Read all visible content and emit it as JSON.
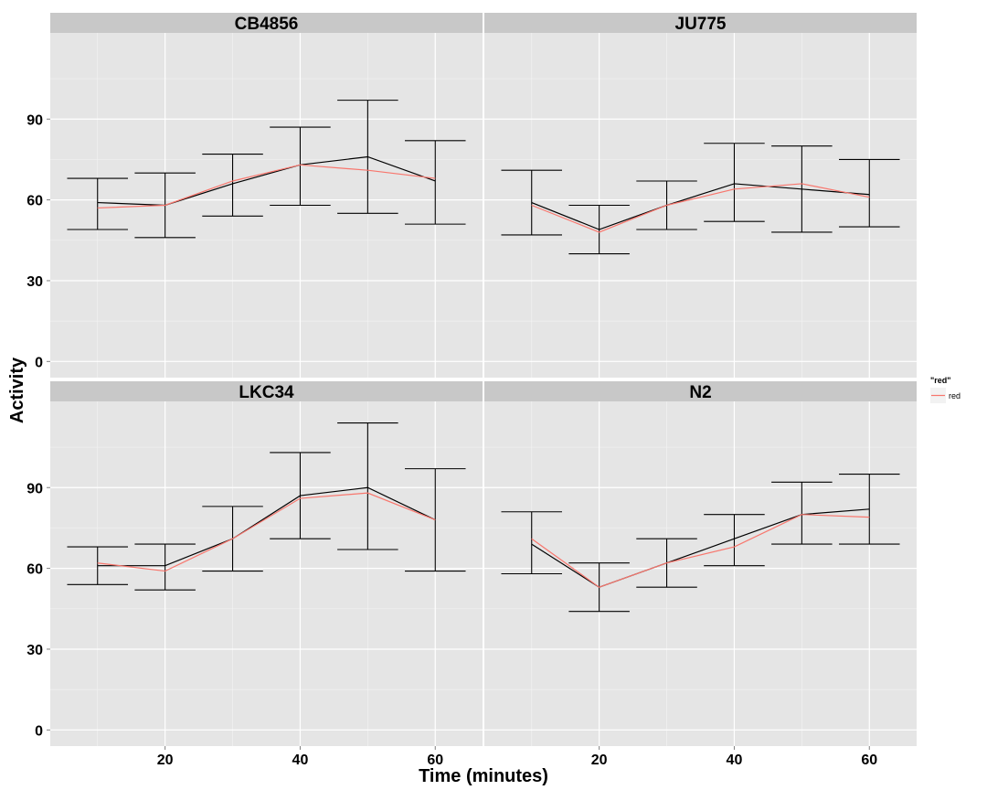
{
  "chart_data": {
    "type": "line",
    "xlabel": "Time (minutes)",
    "ylabel": "Activity",
    "x_ticks": [
      20,
      40,
      60
    ],
    "y_ticks": [
      0,
      30,
      60,
      90
    ],
    "xlim": [
      3,
      67
    ],
    "ylim": [
      -6,
      122
    ],
    "grid": true,
    "legend": {
      "title": "\"red\"",
      "placement": "right",
      "entries": [
        {
          "label": "red",
          "color": "#F8766D"
        }
      ]
    },
    "colors": {
      "mean_line": "#000000",
      "red_line": "#F8766D",
      "panel_bg": "#E5E5E5",
      "strip_bg": "#C8C8C8"
    },
    "panels": [
      {
        "title": "CB4856",
        "x": [
          10,
          20,
          30,
          40,
          50,
          60
        ],
        "mean": [
          59,
          58,
          66,
          73,
          76,
          67
        ],
        "lower": [
          49,
          46,
          54,
          58,
          55,
          51
        ],
        "upper": [
          68,
          70,
          77,
          87,
          97,
          82
        ],
        "red": [
          57,
          58,
          67,
          73,
          71,
          68
        ]
      },
      {
        "title": "JU775",
        "x": [
          10,
          20,
          30,
          40,
          50,
          60
        ],
        "mean": [
          59,
          49,
          58,
          66,
          64,
          62
        ],
        "lower": [
          47,
          40,
          49,
          52,
          48,
          50
        ],
        "upper": [
          71,
          58,
          67,
          81,
          80,
          75
        ],
        "red": [
          58,
          48,
          58,
          64,
          66,
          61
        ]
      },
      {
        "title": "LKC34",
        "x": [
          10,
          20,
          30,
          40,
          50,
          60
        ],
        "mean": [
          61,
          61,
          71,
          87,
          90,
          78
        ],
        "lower": [
          54,
          52,
          59,
          71,
          67,
          59
        ],
        "upper": [
          68,
          69,
          83,
          103,
          114,
          97
        ],
        "red": [
          62,
          59,
          71,
          86,
          88,
          78
        ]
      },
      {
        "title": "N2",
        "x": [
          10,
          20,
          30,
          40,
          50,
          60
        ],
        "mean": [
          69,
          53,
          62,
          71,
          80,
          82
        ],
        "lower": [
          58,
          44,
          53,
          61,
          69,
          69
        ],
        "upper": [
          81,
          62,
          71,
          80,
          92,
          95
        ],
        "red": [
          71,
          53,
          62,
          68,
          80,
          79
        ]
      }
    ]
  }
}
